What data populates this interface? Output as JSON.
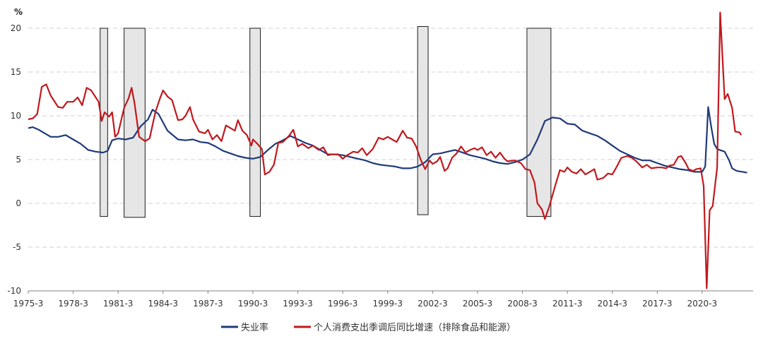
{
  "chart_data": {
    "type": "line",
    "unit_label": "%",
    "ylim": [
      -10,
      22
    ],
    "y_ticks": [
      20,
      15,
      10,
      5,
      0,
      -5,
      -10
    ],
    "x_range": [
      1975.0,
      2023.4
    ],
    "x_ticks": [
      "1975-3",
      "1978-3",
      "1981-3",
      "1984-3",
      "1987-3",
      "1990-3",
      "1993-3",
      "1996-3",
      "1999-3",
      "2002-3",
      "2005-3",
      "2008-3",
      "2011-3",
      "2014-3",
      "2017-3",
      "2020-3"
    ],
    "grid": "horizontal dashed",
    "legend_position": "bottom",
    "recession_boxes": [
      {
        "start": 1979.8,
        "end": 1980.3,
        "top": 20,
        "bottom": -1.5
      },
      {
        "start": 1981.4,
        "end": 1982.8,
        "top": 20,
        "bottom": -1.6
      },
      {
        "start": 1989.8,
        "end": 1990.5,
        "top": 20,
        "bottom": -1.5
      },
      {
        "start": 2001.0,
        "end": 2001.7,
        "top": 20.2,
        "bottom": -1.3
      },
      {
        "start": 2008.3,
        "end": 2009.9,
        "top": 20,
        "bottom": -1.5
      }
    ],
    "series": [
      {
        "name": "失业率",
        "color": "#1f3a7a",
        "points": [
          [
            1975.0,
            8.6
          ],
          [
            1975.3,
            8.7
          ],
          [
            1975.7,
            8.4
          ],
          [
            1976.0,
            8.1
          ],
          [
            1976.5,
            7.6
          ],
          [
            1977.0,
            7.6
          ],
          [
            1977.5,
            7.8
          ],
          [
            1978.0,
            7.3
          ],
          [
            1978.5,
            6.8
          ],
          [
            1979.0,
            6.1
          ],
          [
            1979.5,
            5.9
          ],
          [
            1980.0,
            5.8
          ],
          [
            1980.3,
            6.0
          ],
          [
            1980.6,
            7.2
          ],
          [
            1981.0,
            7.4
          ],
          [
            1981.5,
            7.3
          ],
          [
            1982.0,
            7.5
          ],
          [
            1982.5,
            8.8
          ],
          [
            1983.0,
            9.6
          ],
          [
            1983.3,
            10.7
          ],
          [
            1983.7,
            10.2
          ],
          [
            1984.3,
            8.3
          ],
          [
            1985.0,
            7.3
          ],
          [
            1985.5,
            7.2
          ],
          [
            1986.0,
            7.3
          ],
          [
            1986.5,
            7.0
          ],
          [
            1987.0,
            6.9
          ],
          [
            1987.5,
            6.5
          ],
          [
            1988.0,
            6.0
          ],
          [
            1988.5,
            5.7
          ],
          [
            1989.0,
            5.4
          ],
          [
            1989.5,
            5.2
          ],
          [
            1990.0,
            5.1
          ],
          [
            1990.5,
            5.3
          ],
          [
            1991.0,
            6.1
          ],
          [
            1991.5,
            6.8
          ],
          [
            1992.0,
            7.2
          ],
          [
            1992.5,
            7.7
          ],
          [
            1993.0,
            7.3
          ],
          [
            1993.5,
            6.9
          ],
          [
            1994.0,
            6.6
          ],
          [
            1994.5,
            6.1
          ],
          [
            1995.0,
            5.6
          ],
          [
            1995.5,
            5.6
          ],
          [
            1996.0,
            5.5
          ],
          [
            1996.5,
            5.3
          ],
          [
            1997.0,
            5.1
          ],
          [
            1997.5,
            4.9
          ],
          [
            1998.0,
            4.6
          ],
          [
            1998.5,
            4.4
          ],
          [
            1999.0,
            4.3
          ],
          [
            1999.5,
            4.2
          ],
          [
            2000.0,
            4.0
          ],
          [
            2000.5,
            4.0
          ],
          [
            2001.0,
            4.2
          ],
          [
            2001.5,
            4.7
          ],
          [
            2002.0,
            5.6
          ],
          [
            2002.5,
            5.7
          ],
          [
            2003.0,
            5.9
          ],
          [
            2003.5,
            6.1
          ],
          [
            2004.0,
            5.8
          ],
          [
            2004.5,
            5.5
          ],
          [
            2005.0,
            5.3
          ],
          [
            2005.5,
            5.1
          ],
          [
            2006.0,
            4.8
          ],
          [
            2006.5,
            4.6
          ],
          [
            2007.0,
            4.5
          ],
          [
            2007.5,
            4.7
          ],
          [
            2008.0,
            5.0
          ],
          [
            2008.5,
            5.6
          ],
          [
            2009.0,
            7.3
          ],
          [
            2009.5,
            9.4
          ],
          [
            2010.0,
            9.8
          ],
          [
            2010.5,
            9.7
          ],
          [
            2011.0,
            9.1
          ],
          [
            2011.5,
            9.0
          ],
          [
            2012.0,
            8.3
          ],
          [
            2012.5,
            8.0
          ],
          [
            2013.0,
            7.7
          ],
          [
            2013.5,
            7.2
          ],
          [
            2014.0,
            6.6
          ],
          [
            2014.5,
            6.0
          ],
          [
            2015.0,
            5.6
          ],
          [
            2015.5,
            5.2
          ],
          [
            2016.0,
            4.9
          ],
          [
            2016.5,
            4.9
          ],
          [
            2017.0,
            4.6
          ],
          [
            2017.5,
            4.3
          ],
          [
            2018.0,
            4.1
          ],
          [
            2018.5,
            3.9
          ],
          [
            2019.0,
            3.8
          ],
          [
            2019.5,
            3.6
          ],
          [
            2020.0,
            3.6
          ],
          [
            2020.2,
            4.2
          ],
          [
            2020.4,
            11.0
          ],
          [
            2020.6,
            8.8
          ],
          [
            2020.8,
            6.8
          ],
          [
            2021.0,
            6.2
          ],
          [
            2021.5,
            5.9
          ],
          [
            2021.8,
            4.9
          ],
          [
            2022.0,
            4.0
          ],
          [
            2022.3,
            3.7
          ],
          [
            2022.7,
            3.6
          ],
          [
            2023.0,
            3.5
          ]
        ]
      },
      {
        "name": "个人消费支出季调后同比增速（排除食品和能源）",
        "color": "#c0191e",
        "points": [
          [
            1975.0,
            9.6
          ],
          [
            1975.3,
            9.7
          ],
          [
            1975.6,
            10.2
          ],
          [
            1975.9,
            13.3
          ],
          [
            1976.2,
            13.6
          ],
          [
            1976.5,
            12.3
          ],
          [
            1977.0,
            11.0
          ],
          [
            1977.3,
            10.9
          ],
          [
            1977.6,
            11.6
          ],
          [
            1978.0,
            11.6
          ],
          [
            1978.3,
            12.1
          ],
          [
            1978.6,
            11.2
          ],
          [
            1978.9,
            13.2
          ],
          [
            1979.2,
            12.9
          ],
          [
            1979.7,
            11.6
          ],
          [
            1979.9,
            9.4
          ],
          [
            1980.1,
            10.4
          ],
          [
            1980.4,
            9.9
          ],
          [
            1980.6,
            10.4
          ],
          [
            1980.8,
            7.6
          ],
          [
            1981.0,
            8.0
          ],
          [
            1981.4,
            10.9
          ],
          [
            1981.7,
            12.0
          ],
          [
            1981.9,
            13.2
          ],
          [
            1982.1,
            11.4
          ],
          [
            1982.4,
            7.6
          ],
          [
            1982.8,
            7.1
          ],
          [
            1983.1,
            7.4
          ],
          [
            1983.5,
            10.5
          ],
          [
            1983.8,
            12.0
          ],
          [
            1984.0,
            12.9
          ],
          [
            1984.3,
            12.2
          ],
          [
            1984.6,
            11.8
          ],
          [
            1985.0,
            9.5
          ],
          [
            1985.3,
            9.6
          ],
          [
            1985.5,
            10.0
          ],
          [
            1985.8,
            11.0
          ],
          [
            1986.0,
            9.6
          ],
          [
            1986.4,
            8.2
          ],
          [
            1986.8,
            8.0
          ],
          [
            1987.0,
            8.4
          ],
          [
            1987.3,
            7.3
          ],
          [
            1987.6,
            7.8
          ],
          [
            1987.9,
            7.1
          ],
          [
            1988.2,
            8.9
          ],
          [
            1988.5,
            8.6
          ],
          [
            1988.8,
            8.3
          ],
          [
            1989.0,
            9.5
          ],
          [
            1989.3,
            8.3
          ],
          [
            1989.6,
            7.8
          ],
          [
            1989.9,
            6.6
          ],
          [
            1990.0,
            7.3
          ],
          [
            1990.3,
            6.8
          ],
          [
            1990.6,
            6.2
          ],
          [
            1990.8,
            3.3
          ],
          [
            1991.1,
            3.6
          ],
          [
            1991.4,
            4.4
          ],
          [
            1991.7,
            6.9
          ],
          [
            1992.0,
            7.0
          ],
          [
            1992.4,
            7.7
          ],
          [
            1992.7,
            8.4
          ],
          [
            1993.0,
            6.5
          ],
          [
            1993.3,
            6.8
          ],
          [
            1993.7,
            6.3
          ],
          [
            1994.0,
            6.6
          ],
          [
            1994.4,
            6.1
          ],
          [
            1994.7,
            6.4
          ],
          [
            1995.0,
            5.5
          ],
          [
            1995.3,
            5.6
          ],
          [
            1995.7,
            5.6
          ],
          [
            1996.0,
            5.1
          ],
          [
            1996.3,
            5.5
          ],
          [
            1996.7,
            5.9
          ],
          [
            1997.0,
            5.8
          ],
          [
            1997.3,
            6.3
          ],
          [
            1997.6,
            5.5
          ],
          [
            1998.0,
            6.2
          ],
          [
            1998.4,
            7.5
          ],
          [
            1998.7,
            7.3
          ],
          [
            1999.0,
            7.6
          ],
          [
            1999.3,
            7.3
          ],
          [
            1999.6,
            7.0
          ],
          [
            2000.0,
            8.3
          ],
          [
            2000.3,
            7.5
          ],
          [
            2000.6,
            7.4
          ],
          [
            2000.9,
            6.5
          ],
          [
            2001.2,
            5.0
          ],
          [
            2001.5,
            3.9
          ],
          [
            2001.8,
            4.9
          ],
          [
            2002.0,
            4.5
          ],
          [
            2002.3,
            4.8
          ],
          [
            2002.5,
            5.3
          ],
          [
            2002.8,
            3.7
          ],
          [
            2003.0,
            4.0
          ],
          [
            2003.3,
            5.2
          ],
          [
            2003.6,
            5.7
          ],
          [
            2003.9,
            6.5
          ],
          [
            2004.2,
            5.8
          ],
          [
            2004.5,
            6.1
          ],
          [
            2004.8,
            6.3
          ],
          [
            2005.0,
            6.1
          ],
          [
            2005.3,
            6.4
          ],
          [
            2005.6,
            5.5
          ],
          [
            2005.9,
            5.9
          ],
          [
            2006.2,
            5.2
          ],
          [
            2006.5,
            5.8
          ],
          [
            2006.8,
            5.1
          ],
          [
            2007.0,
            4.8
          ],
          [
            2007.5,
            4.9
          ],
          [
            2007.9,
            4.6
          ],
          [
            2008.2,
            3.9
          ],
          [
            2008.5,
            3.8
          ],
          [
            2008.8,
            2.4
          ],
          [
            2009.0,
            0.0
          ],
          [
            2009.3,
            -0.7
          ],
          [
            2009.5,
            -1.8
          ],
          [
            2009.8,
            -0.3
          ],
          [
            2010.2,
            2.1
          ],
          [
            2010.5,
            3.8
          ],
          [
            2010.8,
            3.6
          ],
          [
            2011.0,
            4.1
          ],
          [
            2011.3,
            3.6
          ],
          [
            2011.6,
            3.4
          ],
          [
            2011.9,
            3.9
          ],
          [
            2012.2,
            3.3
          ],
          [
            2012.5,
            3.6
          ],
          [
            2012.8,
            3.9
          ],
          [
            2013.0,
            2.7
          ],
          [
            2013.4,
            2.9
          ],
          [
            2013.7,
            3.4
          ],
          [
            2014.0,
            3.3
          ],
          [
            2014.3,
            4.2
          ],
          [
            2014.6,
            5.2
          ],
          [
            2015.0,
            5.4
          ],
          [
            2015.3,
            5.2
          ],
          [
            2015.6,
            4.8
          ],
          [
            2016.0,
            4.1
          ],
          [
            2016.3,
            4.4
          ],
          [
            2016.6,
            4.0
          ],
          [
            2017.0,
            4.1
          ],
          [
            2017.3,
            4.1
          ],
          [
            2017.6,
            4.0
          ],
          [
            2017.8,
            4.3
          ],
          [
            2018.1,
            4.4
          ],
          [
            2018.4,
            5.3
          ],
          [
            2018.6,
            5.4
          ],
          [
            2018.9,
            4.6
          ],
          [
            2019.1,
            3.9
          ],
          [
            2019.4,
            3.7
          ],
          [
            2019.6,
            3.9
          ],
          [
            2019.9,
            4.0
          ],
          [
            2020.1,
            2.0
          ],
          [
            2020.3,
            -9.7
          ],
          [
            2020.5,
            -0.8
          ],
          [
            2020.7,
            -0.3
          ],
          [
            2021.0,
            4.1
          ],
          [
            2021.2,
            21.8
          ],
          [
            2021.5,
            11.9
          ],
          [
            2021.7,
            12.5
          ],
          [
            2022.0,
            10.9
          ],
          [
            2022.2,
            8.2
          ],
          [
            2022.5,
            8.1
          ],
          [
            2022.6,
            7.8
          ]
        ]
      }
    ]
  }
}
